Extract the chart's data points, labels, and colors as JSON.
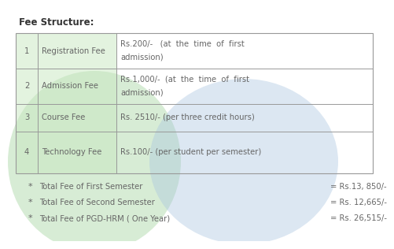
{
  "title": "Fee Structure:",
  "table_rows": [
    [
      "1",
      "Registration Fee",
      "Rs.200/-   (at  the  time  of  first",
      "admission)"
    ],
    [
      "2",
      "Admission Fee",
      "Rs.1,000/-  (at  the  time  of  first",
      "admission)"
    ],
    [
      "3",
      "Course Fee",
      "Rs. 2510/- (per three credit hours)",
      ""
    ],
    [
      "4",
      "Technology Fee",
      "Rs.100/- (per student per semester)",
      ""
    ]
  ],
  "summary_items": [
    [
      "Total Fee of First Semester",
      "= Rs.13, 850/-"
    ],
    [
      "Total Fee of Second Semester",
      "= Rs. 12,665/-"
    ],
    [
      "Total Fee of PGD-HRM ( One Year)",
      "= Rs. 26,515/-"
    ]
  ],
  "bg_color": "#ffffff",
  "text_color": "#666666",
  "title_color": "#333333",
  "green_color": "#a8d5a2",
  "blue_color": "#a8c4e0",
  "border_color": "#999999",
  "font_size": 7.2,
  "title_font_size": 8.5
}
